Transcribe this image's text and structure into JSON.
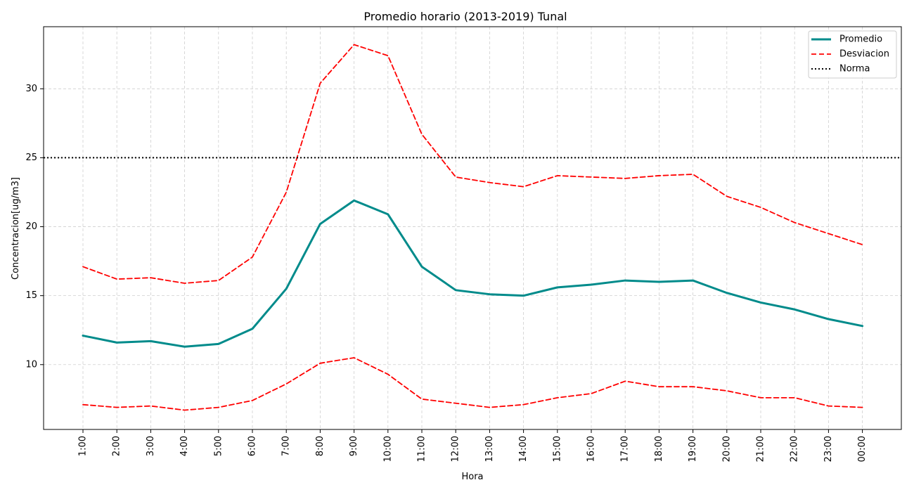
{
  "chart_data": {
    "type": "line",
    "title": "Promedio horario (2013-2019) Tunal",
    "xlabel": "Hora",
    "ylabel": "Concentracion[ug/m3]",
    "categories": [
      "1:00",
      "2:00",
      "3:00",
      "4:00",
      "5:00",
      "6:00",
      "7:00",
      "8:00",
      "9:00",
      "10:00",
      "11:00",
      "12:00",
      "13:00",
      "14:00",
      "15:00",
      "16:00",
      "17:00",
      "18:00",
      "19:00",
      "20:00",
      "21:00",
      "22:00",
      "23:00",
      "00:00"
    ],
    "ylim": [
      5.3,
      34.5
    ],
    "yticks": [
      10,
      15,
      20,
      25,
      30
    ],
    "grid": true,
    "legend_position": "top-right",
    "series": [
      {
        "name": "Promedio",
        "color": "#008b8b",
        "style": "solid",
        "values": [
          12.1,
          11.6,
          11.7,
          11.3,
          11.5,
          12.6,
          15.5,
          20.2,
          21.9,
          20.9,
          17.1,
          15.4,
          15.1,
          15.0,
          15.6,
          15.8,
          16.1,
          16.0,
          16.1,
          15.2,
          14.5,
          14.0,
          13.3,
          12.8
        ]
      },
      {
        "name": "Desviacion",
        "color": "#ff0000",
        "style": "dashed",
        "values": [
          17.1,
          16.2,
          16.3,
          15.9,
          16.1,
          17.8,
          22.5,
          30.4,
          33.2,
          32.4,
          26.7,
          23.6,
          23.2,
          22.9,
          23.7,
          23.6,
          23.5,
          23.7,
          23.8,
          22.2,
          21.4,
          20.3,
          19.5,
          18.7
        ]
      },
      {
        "name": "",
        "color": "#ff0000",
        "style": "dashed",
        "values": [
          7.1,
          6.9,
          7.0,
          6.7,
          6.9,
          7.4,
          8.6,
          10.1,
          10.5,
          9.3,
          7.5,
          7.2,
          6.9,
          7.1,
          7.6,
          7.9,
          8.8,
          8.4,
          8.4,
          8.1,
          7.6,
          7.6,
          7.0,
          6.9
        ]
      },
      {
        "name": "Norma",
        "color": "#000000",
        "style": "dotted",
        "constant": 25
      }
    ]
  }
}
